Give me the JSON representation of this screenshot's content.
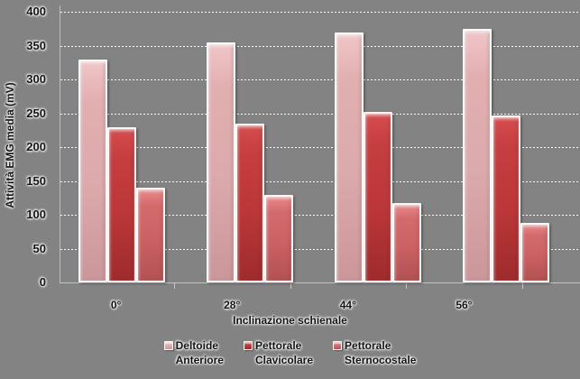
{
  "chart_data": {
    "type": "bar",
    "title": "",
    "categories": [
      "0°",
      "28°",
      "44°",
      "56°"
    ],
    "series": [
      {
        "name": "Deltoide Anteriore",
        "values": [
          330,
          355,
          370,
          375
        ]
      },
      {
        "name": "Pettorale Clavicolare",
        "values": [
          230,
          235,
          252,
          247
        ]
      },
      {
        "name": "Pettorale Sternocostale",
        "values": [
          140,
          130,
          118,
          88
        ]
      }
    ],
    "xlabel": "Inclinazione schienale",
    "ylabel": "Attività EMG media (mV)",
    "ylim": [
      0,
      400
    ],
    "ytick_step": 50,
    "y_ticks": [
      400,
      350,
      300,
      250,
      200,
      150,
      100,
      50,
      0
    ],
    "grid": true,
    "legend_position": "bottom"
  },
  "legend": {
    "items": [
      {
        "line1": "Deltoide",
        "line2": "Anteriore"
      },
      {
        "line1": "Pettorale",
        "line2": "Clavicolare"
      },
      {
        "line1": "Pettorale",
        "line2": "Sternocostale"
      }
    ]
  },
  "colors": {
    "background": "#838383",
    "gridline": "#ffffff",
    "axis_line": "#bbbbbb",
    "text": "#141414",
    "series": [
      {
        "name": "deltoide-anteriore",
        "mid": "#dfabad",
        "light": "#f0c6c8",
        "dark": "#cb969a"
      },
      {
        "name": "pettorale-clavicolare",
        "mid": "#bf393a",
        "light": "#d64d4e",
        "dark": "#9e2b2c"
      },
      {
        "name": "pettorale-sternocostale",
        "mid": "#cc6264",
        "light": "#e8898a",
        "dark": "#b15153"
      }
    ]
  }
}
